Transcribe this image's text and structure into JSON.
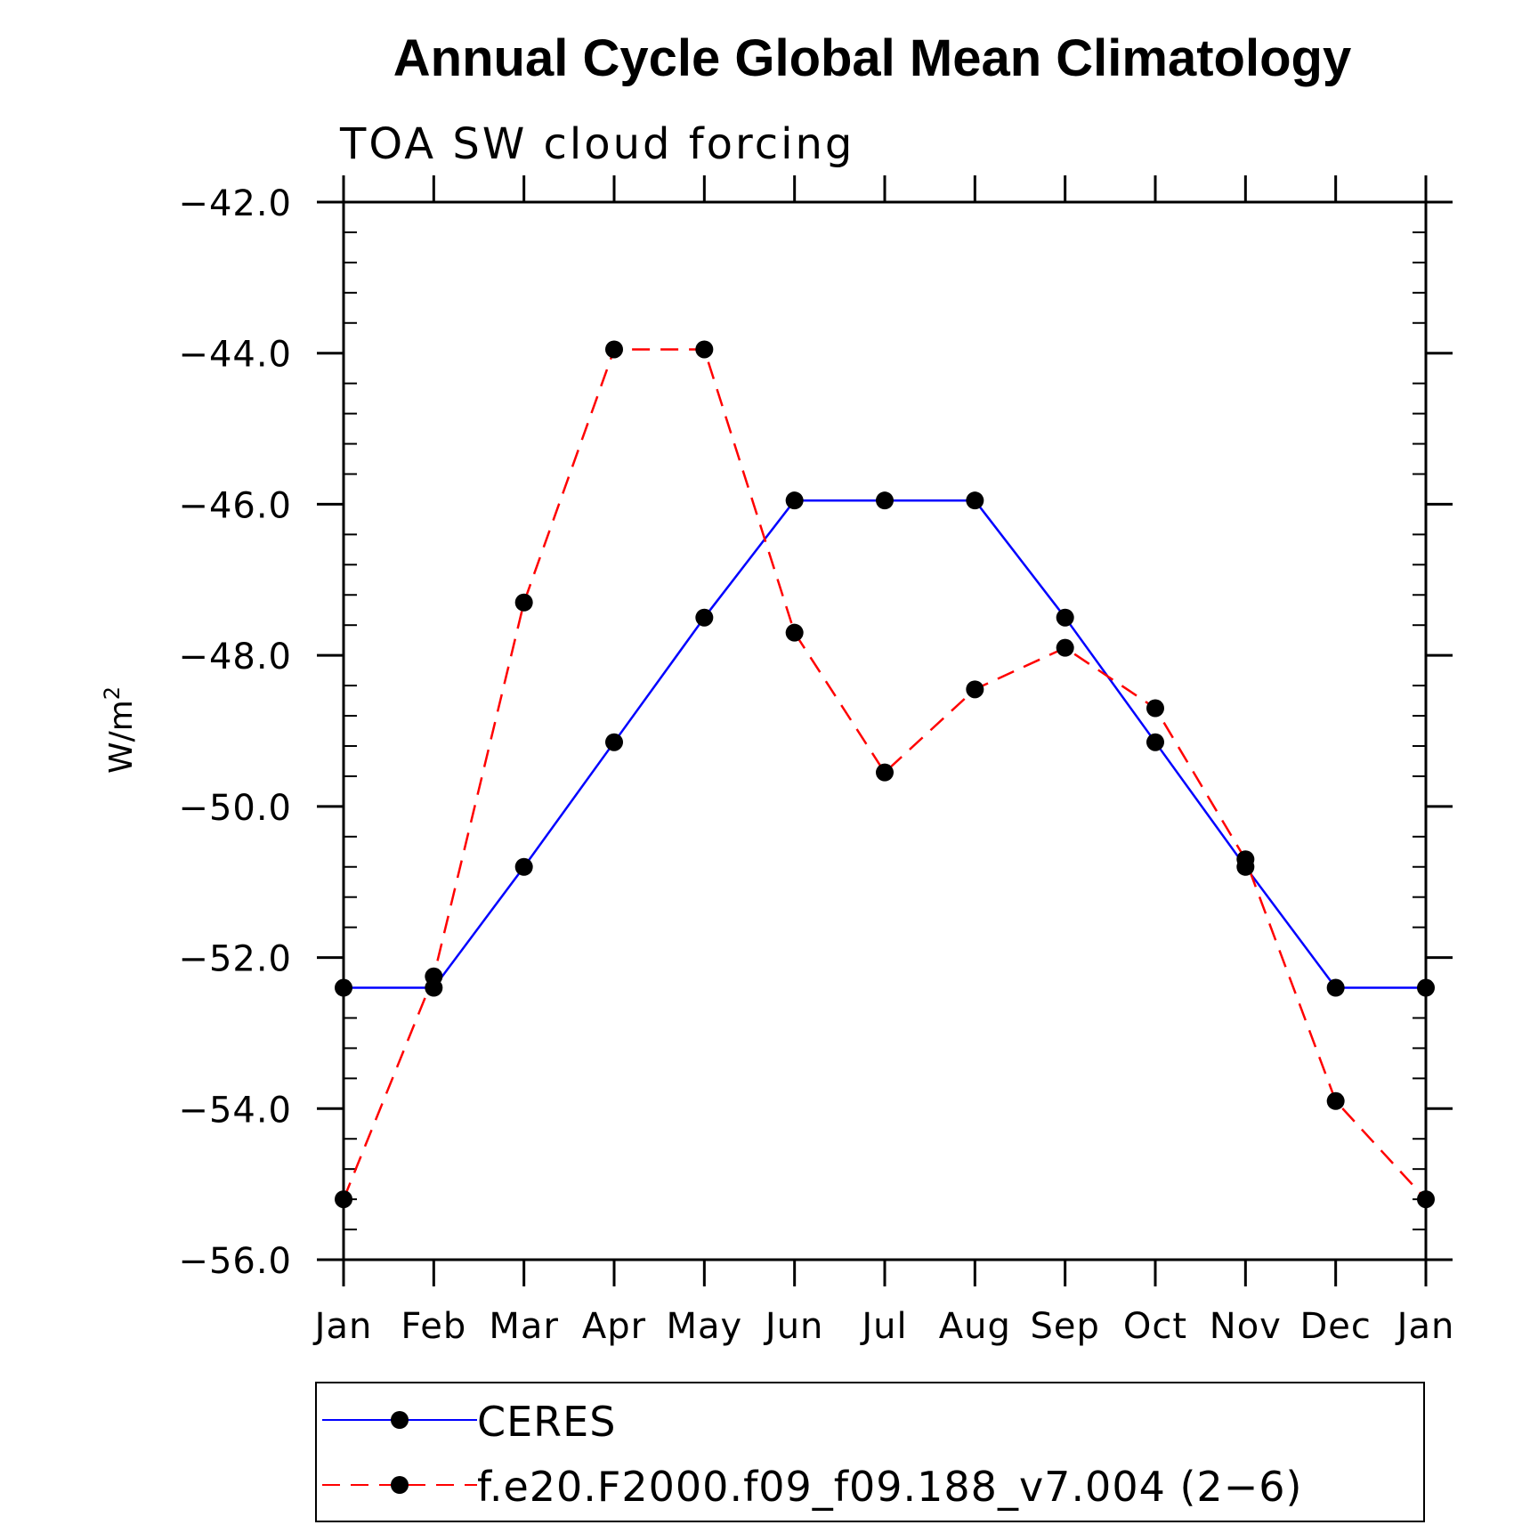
{
  "chart_data": {
    "type": "line",
    "title": "Annual Cycle Global Mean Climatology",
    "subtitle": "TOA SW cloud forcing",
    "ylabel": "W/m",
    "ylabel_sup": "2",
    "categories": [
      "Jan",
      "Feb",
      "Mar",
      "Apr",
      "May",
      "Jun",
      "Jul",
      "Aug",
      "Sep",
      "Oct",
      "Nov",
      "Dec",
      "Jan"
    ],
    "ylim": [
      -56.0,
      -42.0
    ],
    "yticks": [
      -42.0,
      -44.0,
      -46.0,
      -48.0,
      -50.0,
      -52.0,
      -54.0,
      -56.0
    ],
    "ytick_labels": [
      "−42.0",
      "−44.0",
      "−46.0",
      "−48.0",
      "−50.0",
      "−52.0",
      "−54.0",
      "−56.0"
    ],
    "series": [
      {
        "name": "CERES",
        "color": "#0000ff",
        "dash": "solid",
        "values": [
          -52.4,
          -52.4,
          -50.8,
          -49.15,
          -47.5,
          -45.95,
          -45.95,
          -45.95,
          -47.5,
          -49.15,
          -50.8,
          -52.4,
          -52.4
        ]
      },
      {
        "name": "f.e20.F2000.f09_f09.188_v7.004 (2−6)",
        "color": "#ff0000",
        "dash": "dashed",
        "values": [
          -55.2,
          -52.25,
          -47.3,
          -43.95,
          -43.95,
          -47.7,
          -49.55,
          -48.45,
          -47.9,
          -48.7,
          -50.7,
          -53.9,
          -55.2
        ]
      }
    ],
    "legend_position": "bottom",
    "marker_color": "#000000"
  }
}
